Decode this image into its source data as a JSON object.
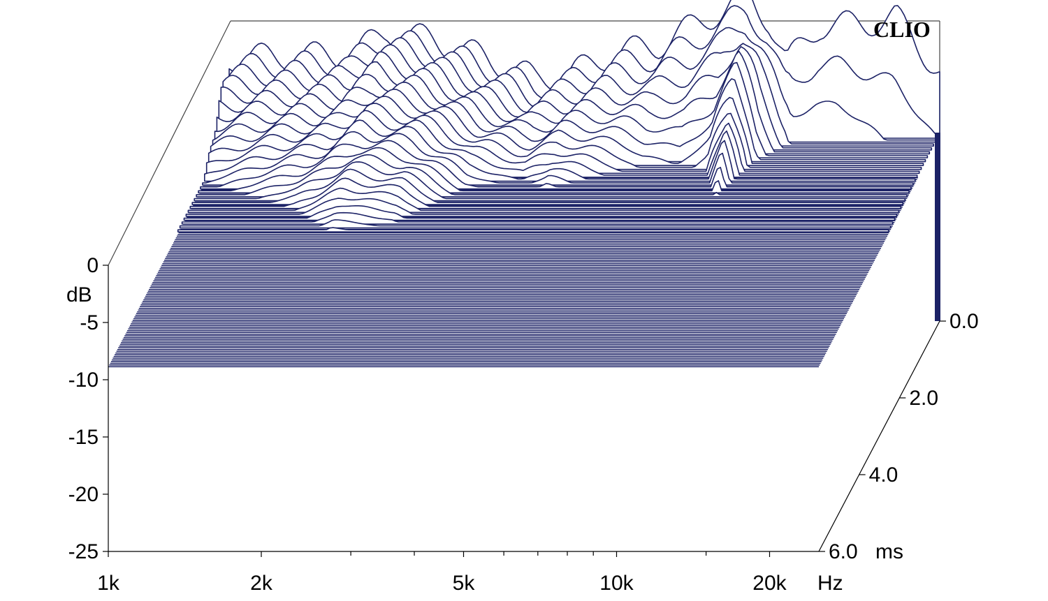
{
  "chart_data": {
    "type": "waterfall",
    "brand": "CLIO",
    "x_axis": {
      "scale": "log",
      "range": [
        1000,
        25000
      ],
      "unit": "Hz",
      "tick_labels": [
        {
          "value": 1000,
          "label": "1k"
        },
        {
          "value": 2000,
          "label": "2k"
        },
        {
          "value": 5000,
          "label": "5k"
        },
        {
          "value": 10000,
          "label": "10k"
        },
        {
          "value": 20000,
          "label": "20k"
        }
      ],
      "minor_ticks": [
        3000,
        4000,
        6000,
        7000,
        8000,
        9000,
        15000
      ]
    },
    "y_axis": {
      "label": "dB",
      "range": [
        -25,
        0
      ],
      "tick_labels": [
        {
          "value": 0,
          "label": "0"
        },
        {
          "value": -5,
          "label": "-5"
        },
        {
          "value": -10,
          "label": "-10"
        },
        {
          "value": -15,
          "label": "-15"
        },
        {
          "value": -20,
          "label": "-20"
        },
        {
          "value": -25,
          "label": "-25"
        }
      ]
    },
    "time_axis": {
      "unit": "ms",
      "range": [
        0,
        6
      ],
      "tick_labels": [
        {
          "value": 0,
          "label": "0.0"
        },
        {
          "value": 2,
          "label": "2.0"
        },
        {
          "value": 4,
          "label": "4.0"
        },
        {
          "value": 6,
          "label": "6.0"
        }
      ]
    },
    "slice_count": 60,
    "initial_response_db": [
      {
        "f": 1000,
        "db": -2.0
      },
      {
        "f": 1750,
        "db": -1.7
      },
      {
        "f": 2050,
        "db": 0.3
      },
      {
        "f": 2500,
        "db": -0.4
      },
      {
        "f": 3200,
        "db": -2.0
      },
      {
        "f": 4000,
        "db": -3.8
      },
      {
        "f": 4700,
        "db": -3.4
      },
      {
        "f": 5700,
        "db": -1.6
      },
      {
        "f": 7000,
        "db": -0.9
      },
      {
        "f": 8500,
        "db": 1.2
      },
      {
        "f": 10500,
        "db": 3.3
      },
      {
        "f": 11500,
        "db": 1.4
      },
      {
        "f": 12500,
        "db": -2.4
      },
      {
        "f": 14500,
        "db": 0.8
      },
      {
        "f": 18000,
        "db": 1.0
      },
      {
        "f": 20500,
        "db": 1.6
      },
      {
        "f": 22500,
        "db": -0.7
      },
      {
        "f": 25000,
        "db": -3.2
      }
    ],
    "decay_ms_to_floor": [
      {
        "f": 1000,
        "ms": 1.3
      },
      {
        "f": 1600,
        "ms": 2.0
      },
      {
        "f": 2000,
        "ms": 2.6
      },
      {
        "f": 2600,
        "ms": 2.4
      },
      {
        "f": 3300,
        "ms": 1.5
      },
      {
        "f": 4200,
        "ms": 1.2
      },
      {
        "f": 4800,
        "ms": 1.5
      },
      {
        "f": 5700,
        "ms": 1.2
      },
      {
        "f": 7000,
        "ms": 0.9
      },
      {
        "f": 8200,
        "ms": 0.8
      },
      {
        "f": 9500,
        "ms": 1.0
      },
      {
        "f": 10500,
        "ms": 1.7
      },
      {
        "f": 11500,
        "ms": 0.8
      },
      {
        "f": 13000,
        "ms": 0.3
      },
      {
        "f": 16000,
        "ms": 0.3
      },
      {
        "f": 20000,
        "ms": 0.2
      },
      {
        "f": 25000,
        "ms": 0.1
      }
    ],
    "noise_floor_db": -8.5
  }
}
